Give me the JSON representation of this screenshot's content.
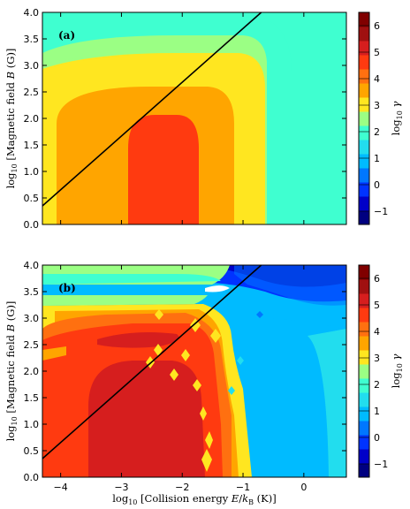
{
  "chart_data": [
    {
      "type": "heatmap",
      "panel_label": "(a)",
      "xlabel": "",
      "ylabel": "log10 [Magnetic field B (G)]",
      "xlim": [
        -4.3,
        0.7
      ],
      "ylim": [
        0.0,
        4.0
      ],
      "x_ticks": [],
      "y_ticks": [
        "0.0",
        "0.5",
        "1.0",
        "1.5",
        "2.0",
        "2.5",
        "3.0",
        "3.5",
        "4.0"
      ],
      "colorbar": {
        "label": "log10 γ",
        "levels": [
          -1.5,
          -1,
          -0.5,
          0,
          0.5,
          1,
          1.5,
          2,
          2.5,
          3,
          3.5,
          4,
          4.5,
          5,
          5.5,
          6,
          6.5
        ],
        "colors": [
          "#000080",
          "#0000c8",
          "#0033ff",
          "#0077ff",
          "#00bbff",
          "#22ddee",
          "#3fffd0",
          "#9bff84",
          "#ffe620",
          "#ffa500",
          "#ff7010",
          "#ff3a10",
          "#d61e1e",
          "#a01010",
          "#800000"
        ],
        "tick_labels": [
          "−1",
          "0",
          "1",
          "2",
          "3",
          "4",
          "5",
          "6"
        ],
        "tick_values": [
          -1,
          0,
          1,
          2,
          3,
          4,
          5,
          6
        ]
      },
      "regions": [
        {
          "level": 2.0,
          "desc": "background",
          "x": [
            -4.3,
            0.7
          ],
          "y": [
            0,
            4
          ]
        },
        {
          "level": 2.5,
          "x_range": [
            -4.2,
            -0.7
          ],
          "y_top": 3.6
        },
        {
          "level": 3.0,
          "x_range": [
            -4.2,
            -0.3
          ],
          "y_top": 3.3
        },
        {
          "level": 3.5,
          "x_range": [
            -4.0,
            -1.2
          ],
          "y_top": 2.95
        },
        {
          "level": 4.5,
          "x_range": [
            -2.9,
            -1.75
          ],
          "y_top": 1.9
        }
      ],
      "line": {
        "x": [
          -4.3,
          -0.7
        ],
        "y": [
          0.35,
          4.0
        ]
      }
    },
    {
      "type": "heatmap",
      "panel_label": "(b)",
      "xlabel": "log10 [Collision energy E/kB (K)]",
      "ylabel": "log10 [Magnetic field B (G)]",
      "xlim": [
        -4.3,
        0.7
      ],
      "ylim": [
        0.0,
        4.0
      ],
      "x_ticks": [
        "−4",
        "−3",
        "−2",
        "−1",
        "0"
      ],
      "x_tick_values": [
        -4,
        -3,
        -2,
        -1,
        0
      ],
      "y_ticks": [
        "0.0",
        "0.5",
        "1.0",
        "1.5",
        "2.0",
        "2.5",
        "3.0",
        "3.5",
        "4.0"
      ],
      "colorbar": {
        "label": "log10 γ",
        "tick_labels": [
          "−1",
          "0",
          "1",
          "2",
          "3",
          "4",
          "5",
          "6"
        ],
        "tick_values": [
          -1,
          0,
          1,
          2,
          3,
          4,
          5,
          6
        ]
      },
      "line": {
        "x": [
          -4.3,
          -0.7
        ],
        "y": [
          0.35,
          4.0
        ]
      }
    }
  ]
}
